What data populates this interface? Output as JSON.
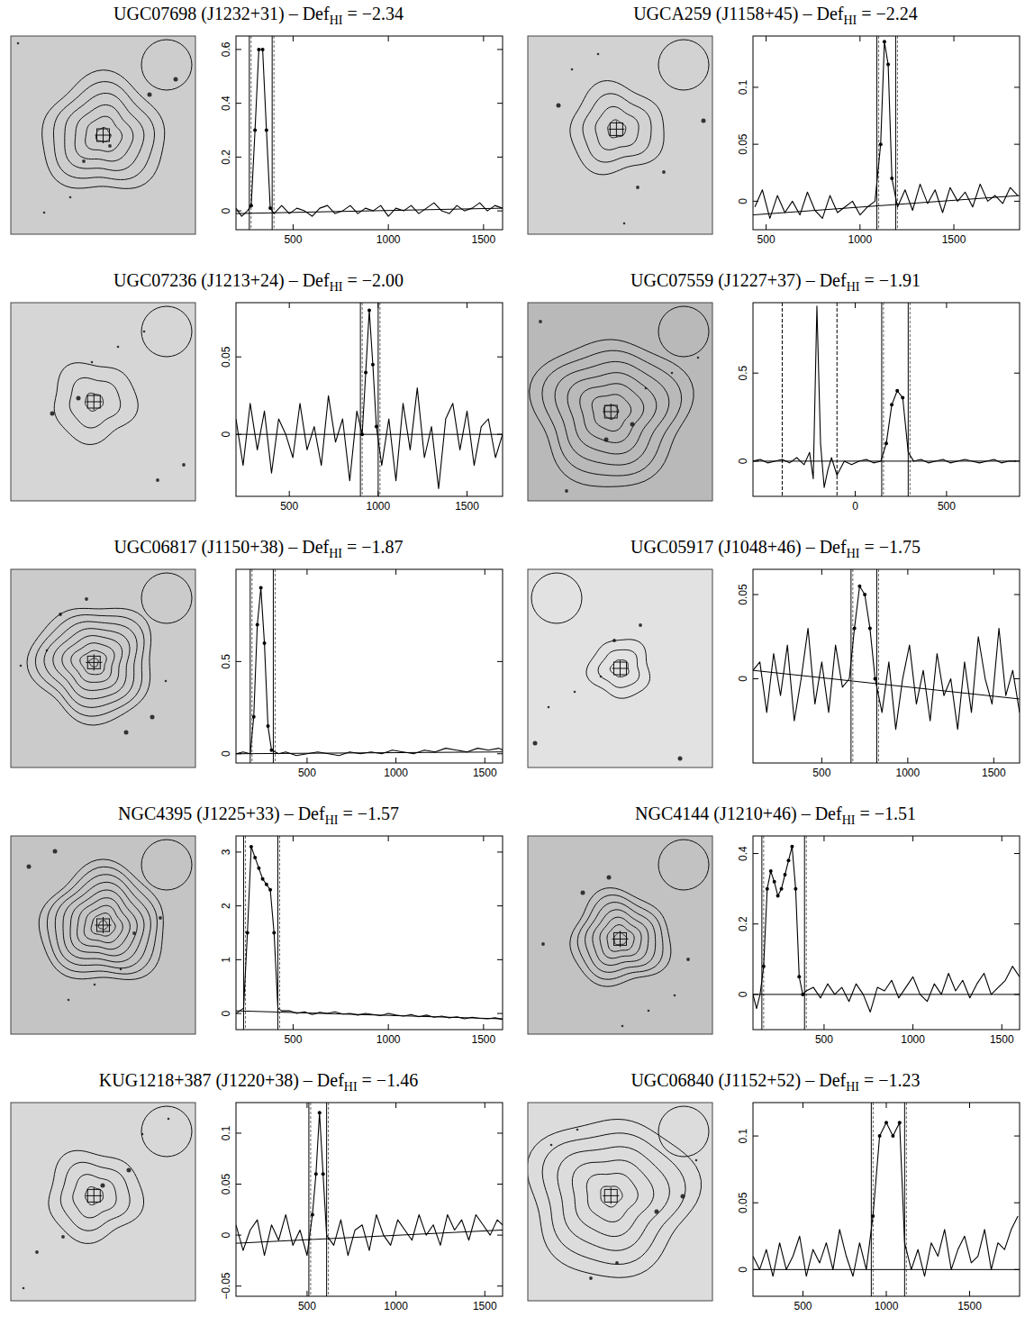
{
  "chart_data": [
    {
      "type": "line",
      "title": "UGC07698 (J1232+31) – DefHI = −2.34",
      "subscript": "HI",
      "color": "#000000",
      "marker": "dot",
      "x": [
        200,
        230,
        260,
        280,
        300,
        320,
        340,
        360,
        380,
        400,
        440,
        480,
        520,
        560,
        600,
        640,
        680,
        720,
        760,
        800,
        840,
        880,
        920,
        960,
        1000,
        1040,
        1080,
        1120,
        1160,
        1200,
        1240,
        1280,
        1320,
        1360,
        1400,
        1440,
        1480,
        1520,
        1560,
        1600
      ],
      "values": [
        0.01,
        -0.02,
        0.0,
        0.02,
        0.3,
        0.6,
        0.6,
        0.3,
        0.01,
        -0.01,
        0.02,
        -0.01,
        0.01,
        0.0,
        -0.02,
        0.01,
        0.02,
        -0.01,
        0.0,
        0.02,
        -0.01,
        0.01,
        0.0,
        0.02,
        -0.02,
        0.01,
        0.0,
        0.02,
        -0.01,
        0.01,
        0.03,
        0.0,
        -0.01,
        0.02,
        0.0,
        0.01,
        0.03,
        0.0,
        0.02,
        0.01
      ],
      "xlim": [
        200,
        1600
      ],
      "ylim": [
        -0.07,
        0.65
      ],
      "xticks": [
        500,
        1000,
        1500
      ],
      "yticks": [
        0,
        0.2,
        0.4,
        0.6
      ],
      "window": [
        270,
        390
      ],
      "baseline": [
        -0.01,
        0.01
      ]
    },
    {
      "type": "line",
      "title": "UGCA259 (J1158+45) – DefHI = −2.24",
      "subscript": "HI",
      "color": "#000000",
      "marker": "dot",
      "x": [
        440,
        480,
        520,
        560,
        600,
        640,
        680,
        720,
        760,
        800,
        840,
        880,
        920,
        960,
        1000,
        1040,
        1080,
        1110,
        1130,
        1150,
        1170,
        1200,
        1240,
        1280,
        1320,
        1360,
        1400,
        1440,
        1480,
        1520,
        1560,
        1600,
        1640,
        1680,
        1720,
        1760,
        1800,
        1840
      ],
      "values": [
        -0.005,
        0.01,
        -0.015,
        0.005,
        -0.01,
        0.0,
        -0.012,
        0.008,
        -0.008,
        -0.015,
        0.005,
        -0.01,
        -0.005,
        0.0,
        -0.012,
        -0.005,
        0.0,
        0.05,
        0.14,
        0.12,
        0.02,
        -0.005,
        0.01,
        -0.008,
        0.015,
        -0.002,
        0.01,
        -0.01,
        0.012,
        0.0,
        0.008,
        -0.005,
        0.015,
        0.0,
        0.005,
        -0.002,
        0.012,
        0.005
      ],
      "xlim": [
        430,
        1850
      ],
      "ylim": [
        -0.025,
        0.145
      ],
      "xticks": [
        500,
        1000,
        1500
      ],
      "yticks": [
        0,
        0.05,
        0.1
      ],
      "window": [
        1090,
        1190
      ],
      "baseline": [
        -0.012,
        0.005
      ]
    },
    {
      "type": "line",
      "title": "UGC07236 (J1213+24) – DefHI = −2.00",
      "subscript": "HI",
      "color": "#000000",
      "marker": "dot",
      "x": [
        200,
        240,
        280,
        320,
        360,
        400,
        440,
        480,
        520,
        560,
        600,
        640,
        680,
        720,
        760,
        800,
        840,
        880,
        910,
        930,
        950,
        970,
        990,
        1020,
        1060,
        1100,
        1140,
        1180,
        1220,
        1260,
        1300,
        1340,
        1380,
        1420,
        1460,
        1500,
        1540,
        1580,
        1620,
        1660,
        1700
      ],
      "values": [
        0.01,
        -0.02,
        0.02,
        -0.01,
        0.015,
        -0.025,
        0.01,
        0.0,
        -0.015,
        0.02,
        -0.01,
        0.005,
        -0.02,
        0.025,
        -0.005,
        0.01,
        -0.03,
        0.015,
        0.0,
        0.04,
        0.08,
        0.045,
        0.005,
        -0.02,
        0.01,
        -0.03,
        0.02,
        -0.01,
        0.03,
        -0.015,
        0.005,
        -0.035,
        0.01,
        0.02,
        -0.01,
        0.015,
        -0.02,
        0.005,
        0.01,
        -0.015,
        0.0
      ],
      "xlim": [
        200,
        1700
      ],
      "ylim": [
        -0.04,
        0.085
      ],
      "xticks": [
        500,
        1000,
        1500
      ],
      "yticks": [
        0,
        0.05
      ],
      "window": [
        900,
        1000
      ],
      "baseline": [
        0,
        0
      ]
    },
    {
      "type": "line",
      "title": "UGC07559 (J1227+37) – DefHI = −1.91",
      "subscript": "HI",
      "color": "#000000",
      "marker": "dot",
      "x": [
        -560,
        -520,
        -480,
        -440,
        -400,
        -360,
        -320,
        -280,
        -250,
        -230,
        -210,
        -190,
        -170,
        -150,
        -130,
        -100,
        -60,
        -20,
        20,
        60,
        100,
        140,
        170,
        200,
        230,
        260,
        290,
        320,
        360,
        400,
        440,
        480,
        520,
        560,
        600,
        640,
        680,
        720,
        760,
        800,
        840,
        880
      ],
      "values": [
        0.0,
        0.01,
        -0.01,
        0.0,
        0.01,
        -0.01,
        0.02,
        -0.02,
        0.05,
        -0.1,
        0.88,
        0.1,
        -0.15,
        -0.05,
        0.02,
        -0.08,
        0.0,
        -0.02,
        0.0,
        0.01,
        -0.01,
        0.0,
        0.1,
        0.32,
        0.4,
        0.36,
        0.05,
        0.0,
        0.01,
        -0.01,
        0.0,
        0.01,
        -0.01,
        0.0,
        0.01,
        0.0,
        -0.01,
        0.0,
        0.01,
        -0.01,
        0.0,
        0.0
      ],
      "xlim": [
        -560,
        900
      ],
      "ylim": [
        -0.2,
        0.9
      ],
      "xticks": [
        0,
        500
      ],
      "yticks": [
        0,
        0.5
      ],
      "window": [
        145,
        290
      ],
      "excluded_window": [
        -400,
        -100
      ],
      "baseline": [
        0,
        0
      ]
    },
    {
      "type": "line",
      "title": "UGC06817 (J1150+38) – DefHI = −1.87",
      "subscript": "HI",
      "color": "#000000",
      "marker": "dot",
      "x": [
        100,
        140,
        180,
        200,
        220,
        240,
        260,
        280,
        300,
        340,
        380,
        440,
        500,
        560,
        620,
        680,
        740,
        800,
        860,
        920,
        980,
        1040,
        1100,
        1160,
        1220,
        1280,
        1340,
        1400,
        1460,
        1520,
        1580,
        1600
      ],
      "values": [
        0.0,
        0.01,
        0.0,
        0.2,
        0.7,
        0.9,
        0.6,
        0.15,
        0.02,
        0.0,
        0.01,
        -0.01,
        0.0,
        0.01,
        0.0,
        -0.01,
        0.01,
        0.0,
        0.01,
        0.0,
        0.02,
        0.01,
        0.0,
        0.02,
        0.01,
        0.03,
        0.02,
        0.01,
        0.03,
        0.02,
        0.03,
        0.02
      ],
      "xlim": [
        100,
        1600
      ],
      "ylim": [
        -0.05,
        1.0
      ],
      "xticks": [
        500,
        1000,
        1500
      ],
      "yticks": [
        0,
        0.5
      ],
      "window": [
        180,
        310
      ],
      "baseline": [
        0,
        0.01
      ]
    },
    {
      "type": "line",
      "title": "UGC05917 (J1048+46) – DefHI = −1.75",
      "subscript": "HI",
      "color": "#000000",
      "marker": "dot",
      "x": [
        100,
        140,
        180,
        220,
        260,
        300,
        340,
        380,
        420,
        460,
        500,
        540,
        580,
        620,
        660,
        690,
        720,
        750,
        780,
        810,
        850,
        890,
        930,
        970,
        1010,
        1050,
        1090,
        1130,
        1170,
        1210,
        1250,
        1290,
        1330,
        1370,
        1410,
        1450,
        1490,
        1530,
        1570,
        1610,
        1650
      ],
      "values": [
        0.005,
        0.01,
        -0.02,
        0.015,
        -0.01,
        0.02,
        -0.025,
        0.0,
        0.03,
        -0.015,
        0.01,
        -0.02,
        0.02,
        -0.005,
        0.0,
        0.03,
        0.055,
        0.05,
        0.03,
        0.0,
        -0.02,
        0.01,
        -0.03,
        0.0,
        0.02,
        -0.015,
        0.005,
        -0.025,
        0.015,
        -0.01,
        0.0,
        -0.03,
        0.01,
        -0.02,
        0.025,
        0.0,
        -0.015,
        0.03,
        -0.01,
        0.005,
        -0.02
      ],
      "xlim": [
        100,
        1650
      ],
      "ylim": [
        -0.05,
        0.065
      ],
      "xticks": [
        500,
        1000,
        1500
      ],
      "yticks": [
        0,
        0.05
      ],
      "window": [
        670,
        820
      ],
      "baseline": [
        0.005,
        -0.012
      ]
    },
    {
      "type": "line",
      "title": "NGC4395 (J1225+33) – DefHI = −1.57",
      "subscript": "HI",
      "color": "#000000",
      "marker": "dot",
      "x": [
        200,
        220,
        240,
        260,
        280,
        300,
        320,
        340,
        360,
        380,
        400,
        420,
        440,
        480,
        520,
        560,
        600,
        640,
        680,
        720,
        760,
        800,
        840,
        880,
        920,
        960,
        1000,
        1040,
        1080,
        1120,
        1160,
        1200,
        1240,
        1280,
        1320,
        1360,
        1400,
        1440,
        1480,
        1520,
        1560,
        1600
      ],
      "values": [
        0.0,
        0.05,
        0.1,
        1.5,
        3.1,
        2.9,
        2.7,
        2.5,
        2.4,
        2.3,
        1.5,
        0.1,
        0.05,
        0.05,
        0.0,
        0.03,
        -0.02,
        0.02,
        0.0,
        0.03,
        -0.01,
        0.0,
        -0.03,
        0.0,
        -0.02,
        -0.04,
        0.0,
        -0.03,
        -0.05,
        -0.02,
        -0.06,
        -0.03,
        -0.07,
        -0.05,
        -0.08,
        -0.06,
        -0.1,
        -0.07,
        -0.09,
        -0.1,
        -0.08,
        -0.11
      ],
      "xlim": [
        200,
        1600
      ],
      "ylim": [
        -0.3,
        3.3
      ],
      "xticks": [
        500,
        1000,
        1500
      ],
      "yticks": [
        0,
        1,
        2,
        3
      ],
      "window": [
        240,
        420
      ],
      "baseline": [
        0.05,
        -0.1
      ]
    },
    {
      "type": "line",
      "title": "NGC4144 (J1210+46) – DefHI = −1.51",
      "subscript": "HI",
      "color": "#000000",
      "marker": "dot",
      "x": [
        100,
        120,
        140,
        160,
        180,
        200,
        220,
        240,
        260,
        280,
        300,
        320,
        340,
        360,
        380,
        400,
        440,
        480,
        520,
        560,
        600,
        640,
        680,
        720,
        760,
        800,
        840,
        880,
        920,
        960,
        1000,
        1040,
        1080,
        1120,
        1160,
        1200,
        1240,
        1280,
        1320,
        1360,
        1400,
        1440,
        1480,
        1520,
        1560,
        1600
      ],
      "values": [
        0.0,
        -0.04,
        0.0,
        0.08,
        0.3,
        0.35,
        0.32,
        0.28,
        0.3,
        0.34,
        0.38,
        0.42,
        0.3,
        0.05,
        0.0,
        0.01,
        0.02,
        -0.01,
        0.03,
        0.0,
        0.02,
        -0.02,
        0.03,
        0.0,
        -0.05,
        0.02,
        0.01,
        0.04,
        -0.01,
        0.02,
        0.05,
        0.0,
        -0.02,
        0.03,
        0.0,
        0.06,
        0.01,
        0.04,
        -0.01,
        0.03,
        0.06,
        0.0,
        0.02,
        0.04,
        0.08,
        0.05
      ],
      "xlim": [
        100,
        1600
      ],
      "ylim": [
        -0.1,
        0.45
      ],
      "xticks": [
        500,
        1000,
        1500
      ],
      "yticks": [
        0,
        0.2,
        0.4
      ],
      "window": [
        150,
        390
      ],
      "baseline": [
        0,
        0
      ]
    },
    {
      "type": "line",
      "title": "KUG1218+387 (J1220+38) – DefHI = −1.46",
      "subscript": "HI",
      "color": "#000000",
      "marker": "dot",
      "x": [
        100,
        140,
        180,
        220,
        260,
        300,
        340,
        380,
        420,
        460,
        500,
        530,
        550,
        570,
        590,
        610,
        650,
        690,
        730,
        770,
        810,
        850,
        890,
        930,
        970,
        1010,
        1050,
        1090,
        1130,
        1170,
        1210,
        1250,
        1290,
        1330,
        1370,
        1410,
        1450,
        1490,
        1530,
        1570,
        1600
      ],
      "values": [
        0.01,
        -0.015,
        0.005,
        0.015,
        -0.02,
        0.01,
        -0.005,
        0.02,
        -0.01,
        0.005,
        -0.02,
        0.02,
        0.06,
        0.12,
        0.06,
        0.0,
        -0.01,
        0.015,
        -0.02,
        0.005,
        0.01,
        -0.015,
        0.02,
        0.0,
        -0.01,
        0.015,
        0.005,
        -0.005,
        0.02,
        0.0,
        0.01,
        -0.01,
        0.02,
        0.005,
        0.015,
        -0.005,
        0.02,
        0.01,
        0.0,
        0.015,
        0.01
      ],
      "xlim": [
        100,
        1600
      ],
      "ylim": [
        -0.06,
        0.13
      ],
      "xticks": [
        500,
        1000,
        1500
      ],
      "yticks": [
        {
          "value": -0.05,
          "label": "−0.05"
        },
        0,
        0.05,
        0.1
      ],
      "window": [
        510,
        610
      ],
      "baseline": [
        -0.008,
        0.005
      ]
    },
    {
      "type": "line",
      "title": "UGC06840 (J1152+52) – DefHI = −1.23",
      "subscript": "HI",
      "color": "#000000",
      "marker": "dot",
      "x": [
        200,
        240,
        280,
        320,
        360,
        400,
        440,
        480,
        520,
        560,
        600,
        640,
        680,
        720,
        760,
        800,
        840,
        880,
        920,
        960,
        1000,
        1040,
        1080,
        1110,
        1150,
        1190,
        1230,
        1270,
        1310,
        1350,
        1390,
        1430,
        1470,
        1510,
        1550,
        1590,
        1630,
        1670,
        1710,
        1750,
        1790
      ],
      "values": [
        0.01,
        0.0,
        0.015,
        -0.005,
        0.02,
        0.0,
        0.01,
        0.025,
        -0.005,
        0.015,
        0.005,
        0.02,
        0.0,
        0.03,
        0.01,
        -0.005,
        0.02,
        0.0,
        0.04,
        0.1,
        0.11,
        0.1,
        0.11,
        0.02,
        0.0,
        0.015,
        -0.005,
        0.02,
        0.01,
        0.03,
        0.0,
        0.015,
        0.025,
        0.005,
        0.01,
        0.03,
        0.0,
        0.02,
        0.015,
        0.03,
        0.04
      ],
      "xlim": [
        200,
        1800
      ],
      "ylim": [
        -0.02,
        0.125
      ],
      "xticks": [
        500,
        1000,
        1500
      ],
      "yticks": [
        0,
        0.05,
        0.1
      ],
      "window": [
        910,
        1110
      ],
      "baseline": [
        0,
        0
      ]
    }
  ]
}
